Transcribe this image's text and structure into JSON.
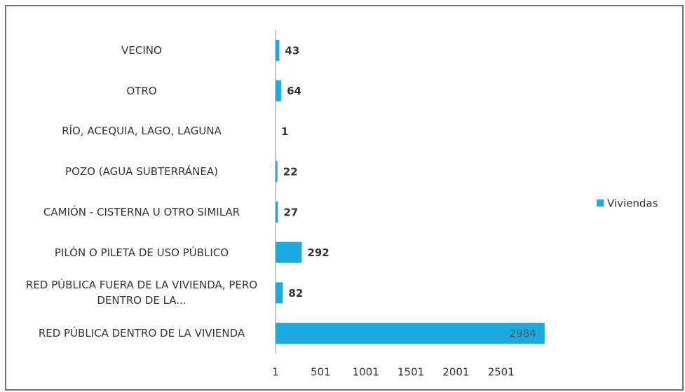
{
  "chart_data": {
    "type": "bar",
    "orientation": "horizontal",
    "categories": [
      "VECINO",
      "OTRO",
      "RÍO, ACEQUIA, LAGO, LAGUNA",
      "POZO (AGUA SUBTERRÁNEA)",
      "CAMIÓN - CISTERNA U OTRO SIMILAR",
      "PILÓN O PILETA DE USO PÚBLICO",
      "RED PÚBLICA FUERA DE LA VIVIENDA, PERO DENTRO DE LA...",
      "RED PÚBLICA DENTRO DE LA VIVIENDA"
    ],
    "series": [
      {
        "name": "Viviendas",
        "color": "#1aabe3",
        "values": [
          43,
          64,
          1,
          22,
          27,
          292,
          82,
          2984
        ]
      }
    ],
    "xlim": [
      1,
      3001
    ],
    "xticks": [
      1,
      501,
      1001,
      1501,
      2001,
      2501
    ],
    "legend": "right"
  }
}
